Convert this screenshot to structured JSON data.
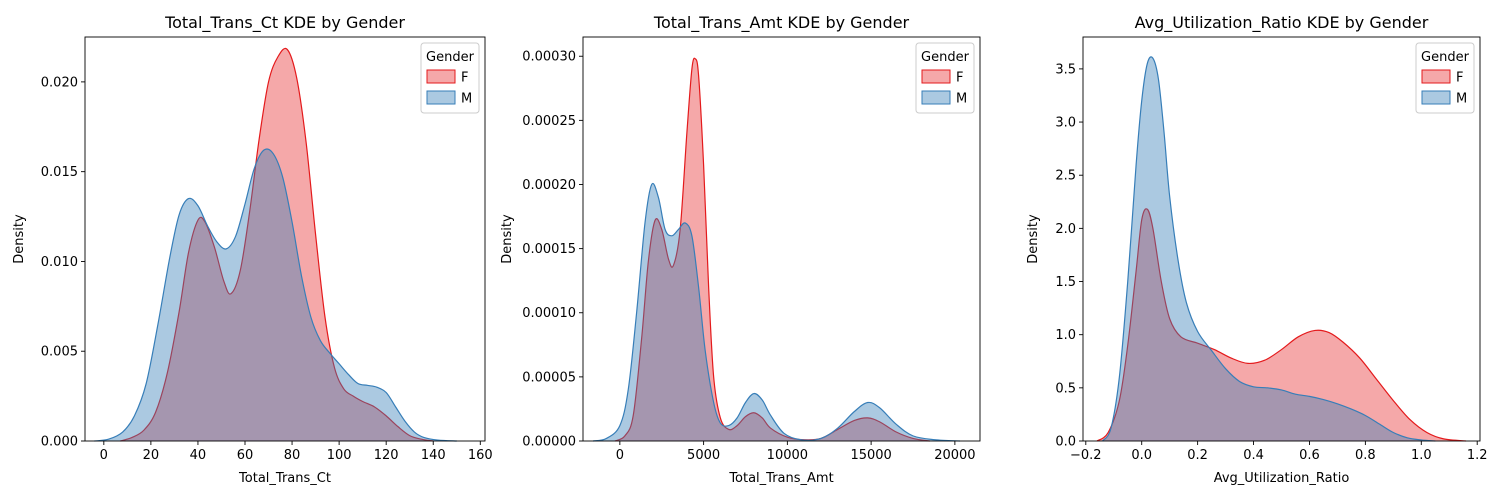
{
  "colors": {
    "F": "#e41a1c",
    "M": "#377eb8"
  },
  "chart_data": [
    {
      "type": "area",
      "title": "Total_Trans_Ct KDE by Gender",
      "xlabel": "Total_Trans_Ct",
      "ylabel": "Density",
      "xlim": [
        -8,
        162
      ],
      "ylim": [
        0,
        0.0225
      ],
      "xticks": [
        0,
        20,
        40,
        60,
        80,
        100,
        120,
        140,
        160
      ],
      "xtick_labels": [
        "0",
        "20",
        "40",
        "60",
        "80",
        "100",
        "120",
        "140",
        "160"
      ],
      "yticks": [
        0,
        0.005,
        0.01,
        0.015,
        0.02
      ],
      "ytick_labels": [
        "0.000",
        "0.005",
        "0.010",
        "0.015",
        "0.020"
      ],
      "legend": {
        "title": "Gender",
        "entries": [
          "F",
          "M"
        ],
        "placement": "top-right"
      },
      "series": [
        {
          "name": "F",
          "points": [
            [
              7,
              0
            ],
            [
              12,
              0.0002
            ],
            [
              17,
              0.0006
            ],
            [
              22,
              0.0016
            ],
            [
              27,
              0.0038
            ],
            [
              32,
              0.0072
            ],
            [
              36,
              0.0105
            ],
            [
              40,
              0.0123
            ],
            [
              43,
              0.0122
            ],
            [
              47,
              0.0108
            ],
            [
              51,
              0.0089
            ],
            [
              54,
              0.0082
            ],
            [
              58,
              0.0095
            ],
            [
              62,
              0.0128
            ],
            [
              66,
              0.0168
            ],
            [
              70,
              0.02
            ],
            [
              74,
              0.0214
            ],
            [
              78,
              0.0218
            ],
            [
              82,
              0.0202
            ],
            [
              86,
              0.0166
            ],
            [
              90,
              0.0115
            ],
            [
              94,
              0.0069
            ],
            [
              98,
              0.0041
            ],
            [
              102,
              0.0029
            ],
            [
              106,
              0.0025
            ],
            [
              110,
              0.0022
            ],
            [
              115,
              0.0019
            ],
            [
              120,
              0.0014
            ],
            [
              125,
              0.0008
            ],
            [
              130,
              0.0003
            ],
            [
              135,
              0.0001
            ],
            [
              140,
              0
            ]
          ]
        },
        {
          "name": "M",
          "points": [
            [
              -4,
              0
            ],
            [
              2,
              0.0001
            ],
            [
              8,
              0.0005
            ],
            [
              13,
              0.0014
            ],
            [
              18,
              0.0032
            ],
            [
              23,
              0.0065
            ],
            [
              28,
              0.0102
            ],
            [
              32,
              0.0126
            ],
            [
              36,
              0.0135
            ],
            [
              40,
              0.0131
            ],
            [
              44,
              0.012
            ],
            [
              48,
              0.0111
            ],
            [
              52,
              0.0107
            ],
            [
              56,
              0.0114
            ],
            [
              60,
              0.0132
            ],
            [
              64,
              0.0152
            ],
            [
              68,
              0.0162
            ],
            [
              72,
              0.016
            ],
            [
              76,
              0.0147
            ],
            [
              80,
              0.0122
            ],
            [
              84,
              0.0092
            ],
            [
              88,
              0.0069
            ],
            [
              92,
              0.0056
            ],
            [
              96,
              0.0049
            ],
            [
              100,
              0.0043
            ],
            [
              104,
              0.0037
            ],
            [
              108,
              0.0032
            ],
            [
              112,
              0.0031
            ],
            [
              116,
              0.003
            ],
            [
              120,
              0.0027
            ],
            [
              124,
              0.0019
            ],
            [
              128,
              0.0011
            ],
            [
              132,
              0.0005
            ],
            [
              136,
              0.0002
            ],
            [
              142,
              5e-05
            ],
            [
              150,
              0
            ]
          ]
        }
      ]
    },
    {
      "type": "area",
      "title": "Total_Trans_Amt KDE by Gender",
      "xlabel": "Total_Trans_Amt",
      "ylabel": "Density",
      "xlim": [
        -2200,
        21500
      ],
      "ylim": [
        0,
        0.000315
      ],
      "xticks": [
        0,
        5000,
        10000,
        15000,
        20000
      ],
      "xtick_labels": [
        "0",
        "5000",
        "10000",
        "15000",
        "20000"
      ],
      "yticks": [
        0,
        5e-05,
        0.0001,
        0.00015,
        0.0002,
        0.00025,
        0.0003
      ],
      "ytick_labels": [
        "0.00000",
        "0.00005",
        "0.00010",
        "0.00015",
        "0.00020",
        "0.00025",
        "0.00030"
      ],
      "legend": {
        "title": "Gender",
        "entries": [
          "F",
          "M"
        ],
        "placement": "top-right"
      },
      "series": [
        {
          "name": "F",
          "points": [
            [
              -300,
              0
            ],
            [
              300,
              4e-06
            ],
            [
              800,
              2e-05
            ],
            [
              1300,
              8e-05
            ],
            [
              1700,
              0.00014
            ],
            [
              2100,
              0.000172
            ],
            [
              2500,
              0.000165
            ],
            [
              2900,
              0.000142
            ],
            [
              3200,
              0.000137
            ],
            [
              3600,
              0.000165
            ],
            [
              4000,
              0.00024
            ],
            [
              4300,
              0.00029
            ],
            [
              4500,
              0.000298
            ],
            [
              4700,
              0.000285
            ],
            [
              5000,
              0.000215
            ],
            [
              5300,
              0.00012
            ],
            [
              5600,
              5e-05
            ],
            [
              6000,
              1.8e-05
            ],
            [
              6500,
              9e-06
            ],
            [
              7000,
              1.2e-05
            ],
            [
              7500,
              1.9e-05
            ],
            [
              8000,
              2.2e-05
            ],
            [
              8500,
              1.8e-05
            ],
            [
              9000,
              1e-05
            ],
            [
              10000,
              3e-06
            ],
            [
              11000,
              1e-06
            ],
            [
              12000,
              2e-06
            ],
            [
              13000,
              9e-06
            ],
            [
              14000,
              1.6e-05
            ],
            [
              14800,
              1.8e-05
            ],
            [
              15500,
              1.5e-05
            ],
            [
              16500,
              7e-06
            ],
            [
              17500,
              2e-06
            ],
            [
              18500,
              0
            ]
          ]
        },
        {
          "name": "M",
          "points": [
            [
              -1600,
              0
            ],
            [
              -800,
              2e-06
            ],
            [
              0,
              1.2e-05
            ],
            [
              500,
              4e-05
            ],
            [
              1000,
              0.0001
            ],
            [
              1500,
              0.00017
            ],
            [
              1900,
              0.0002
            ],
            [
              2300,
              0.00019
            ],
            [
              2700,
              0.000165
            ],
            [
              3100,
              0.00016
            ],
            [
              3500,
              0.000165
            ],
            [
              3900,
              0.00017
            ],
            [
              4300,
              0.00016
            ],
            [
              4700,
              0.00012
            ],
            [
              5100,
              7e-05
            ],
            [
              5600,
              3e-05
            ],
            [
              6000,
              1.4e-05
            ],
            [
              6500,
              1.2e-05
            ],
            [
              7000,
              1.8e-05
            ],
            [
              7500,
              3e-05
            ],
            [
              8000,
              3.7e-05
            ],
            [
              8500,
              3.2e-05
            ],
            [
              9000,
              2e-05
            ],
            [
              9800,
              6e-06
            ],
            [
              10800,
              1e-06
            ],
            [
              12000,
              2e-06
            ],
            [
              13000,
              1e-05
            ],
            [
              14000,
              2.3e-05
            ],
            [
              14800,
              3e-05
            ],
            [
              15500,
              2.6e-05
            ],
            [
              16500,
              1.3e-05
            ],
            [
              17500,
              4e-06
            ],
            [
              18800,
              1e-06
            ],
            [
              20300,
              0
            ]
          ]
        }
      ]
    },
    {
      "type": "area",
      "title": "Avg_Utilization_Ratio KDE by Gender",
      "xlabel": "Avg_Utilization_Ratio",
      "ylabel": "Density",
      "xlim": [
        -0.21,
        1.21
      ],
      "ylim": [
        0,
        3.8
      ],
      "xticks": [
        -0.2,
        0,
        0.2,
        0.4,
        0.6,
        0.8,
        1.0,
        1.2
      ],
      "xtick_labels": [
        "−0.2",
        "0.0",
        "0.2",
        "0.4",
        "0.6",
        "0.8",
        "1.0",
        "1.2"
      ],
      "yticks": [
        0,
        0.5,
        1.0,
        1.5,
        2.0,
        2.5,
        3.0,
        3.5
      ],
      "ytick_labels": [
        "0.0",
        "0.5",
        "1.0",
        "1.5",
        "2.0",
        "2.5",
        "3.0",
        "3.5"
      ],
      "legend": {
        "title": "Gender",
        "entries": [
          "F",
          "M"
        ],
        "placement": "top-right"
      },
      "series": [
        {
          "name": "F",
          "points": [
            [
              -0.16,
              0
            ],
            [
              -0.12,
              0.08
            ],
            [
              -0.08,
              0.38
            ],
            [
              -0.05,
              0.9
            ],
            [
              -0.02,
              1.6
            ],
            [
              0.0,
              2.08
            ],
            [
              0.02,
              2.18
            ],
            [
              0.04,
              2.0
            ],
            [
              0.07,
              1.5
            ],
            [
              0.1,
              1.15
            ],
            [
              0.14,
              0.98
            ],
            [
              0.2,
              0.92
            ],
            [
              0.26,
              0.86
            ],
            [
              0.32,
              0.78
            ],
            [
              0.38,
              0.73
            ],
            [
              0.44,
              0.76
            ],
            [
              0.5,
              0.86
            ],
            [
              0.56,
              0.98
            ],
            [
              0.62,
              1.04
            ],
            [
              0.67,
              1.02
            ],
            [
              0.72,
              0.93
            ],
            [
              0.78,
              0.78
            ],
            [
              0.84,
              0.58
            ],
            [
              0.9,
              0.38
            ],
            [
              0.96,
              0.2
            ],
            [
              1.02,
              0.08
            ],
            [
              1.08,
              0.02
            ],
            [
              1.16,
              0
            ]
          ]
        },
        {
          "name": "M",
          "points": [
            [
              -0.14,
              0
            ],
            [
              -0.11,
              0.12
            ],
            [
              -0.08,
              0.6
            ],
            [
              -0.05,
              1.5
            ],
            [
              -0.02,
              2.6
            ],
            [
              0.0,
              3.2
            ],
            [
              0.02,
              3.55
            ],
            [
              0.04,
              3.6
            ],
            [
              0.06,
              3.4
            ],
            [
              0.08,
              2.9
            ],
            [
              0.1,
              2.3
            ],
            [
              0.13,
              1.7
            ],
            [
              0.16,
              1.3
            ],
            [
              0.2,
              1.03
            ],
            [
              0.25,
              0.85
            ],
            [
              0.3,
              0.68
            ],
            [
              0.35,
              0.56
            ],
            [
              0.4,
              0.51
            ],
            [
              0.45,
              0.5
            ],
            [
              0.5,
              0.48
            ],
            [
              0.55,
              0.44
            ],
            [
              0.6,
              0.42
            ],
            [
              0.65,
              0.39
            ],
            [
              0.7,
              0.35
            ],
            [
              0.75,
              0.3
            ],
            [
              0.8,
              0.24
            ],
            [
              0.85,
              0.16
            ],
            [
              0.9,
              0.08
            ],
            [
              0.95,
              0.03
            ],
            [
              1.0,
              0.01
            ],
            [
              1.05,
              0
            ]
          ]
        }
      ]
    }
  ]
}
